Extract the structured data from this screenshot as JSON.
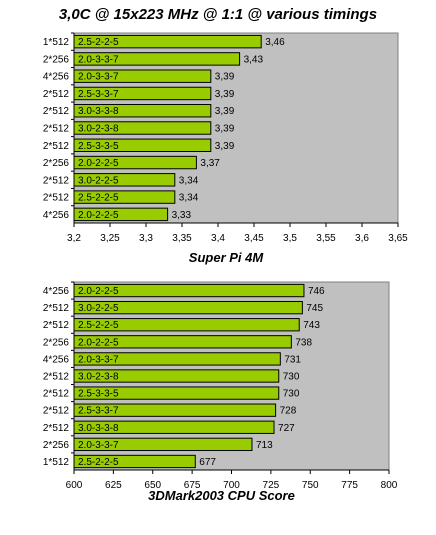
{
  "title": "3,0C @ 15x223 MHz @ 1:1 @ various timings",
  "colors": {
    "bar": "#99cc00",
    "plot_bg": "#c0c0c0",
    "bar_stroke": "#000000"
  },
  "chart_data": [
    {
      "type": "bar",
      "orientation": "horizontal",
      "title": "",
      "xlabel": "Super Pi  4M",
      "ylabel": "",
      "xlim": [
        3.2,
        3.65
      ],
      "grid": false,
      "legend": "none",
      "tick_labels": [
        "3,2",
        "3,25",
        "3,3",
        "3,35",
        "3,4",
        "3,45",
        "3,5",
        "3,55",
        "3,6",
        "3,65"
      ],
      "tick_values": [
        3.2,
        3.25,
        3.3,
        3.35,
        3.4,
        3.45,
        3.5,
        3.55,
        3.6,
        3.65
      ],
      "categories": [
        "1*512",
        "2*256",
        "4*256",
        "2*512",
        "2*512",
        "2*512",
        "2*512",
        "2*256",
        "2*512",
        "2*512",
        "4*256"
      ],
      "bar_labels": [
        "2.5-2-2-5",
        "2.0-3-3-7",
        "2.0-3-3-7",
        "2.5-3-3-7",
        "3.0-3-3-8",
        "3.0-2-3-8",
        "2.5-3-3-5",
        "2.0-2-2-5",
        "3.0-2-2-5",
        "2.5-2-2-5",
        "2.0-2-2-5"
      ],
      "values": [
        3.46,
        3.43,
        3.39,
        3.39,
        3.39,
        3.39,
        3.39,
        3.37,
        3.34,
        3.34,
        3.33
      ],
      "value_labels": [
        "3,46",
        "3,43",
        "3,39",
        "3,39",
        "3,39",
        "3,39",
        "3,39",
        "3,37",
        "3,34",
        "3,34",
        "3,33"
      ]
    },
    {
      "type": "bar",
      "orientation": "horizontal",
      "title": "",
      "xlabel": "3DMark2003 CPU Score",
      "ylabel": "",
      "xlim": [
        600,
        800
      ],
      "grid": false,
      "legend": "none",
      "tick_labels": [
        "600",
        "625",
        "650",
        "675",
        "700",
        "725",
        "750",
        "775",
        "800"
      ],
      "tick_values": [
        600,
        625,
        650,
        675,
        700,
        725,
        750,
        775,
        800
      ],
      "categories": [
        "4*256",
        "2*512",
        "2*512",
        "2*256",
        "4*256",
        "2*512",
        "2*512",
        "2*512",
        "2*512",
        "2*256",
        "1*512"
      ],
      "bar_labels": [
        "2.0-2-2-5",
        "3.0-2-2-5",
        "2.5-2-2-5",
        "2.0-2-2-5",
        "2.0-3-3-7",
        "3.0-2-3-8",
        "2.5-3-3-5",
        "2.5-3-3-7",
        "3.0-3-3-8",
        "2.0-3-3-7",
        "2.5-2-2-5"
      ],
      "values": [
        746,
        745,
        743,
        738,
        731,
        730,
        730,
        728,
        727,
        713,
        677
      ],
      "value_labels": [
        "746",
        "745",
        "743",
        "738",
        "731",
        "730",
        "730",
        "728",
        "727",
        "713",
        "677"
      ]
    }
  ]
}
